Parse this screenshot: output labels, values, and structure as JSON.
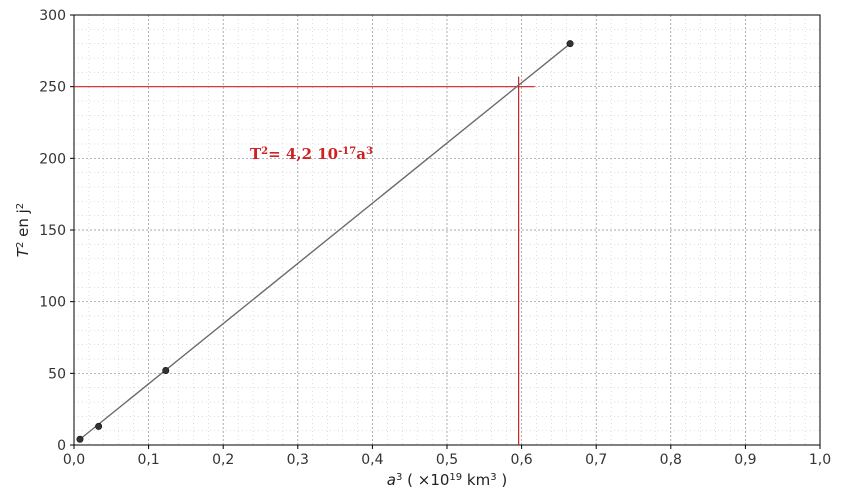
{
  "chart_data": {
    "type": "scatter",
    "xlabel_var": "a",
    "xlabel_exp": "3",
    "xlabel_mid": " ( ×10",
    "xlabel_pow": "19",
    "xlabel_unit": " km",
    "xlabel_unit_exp": "3",
    "xlabel_end": " )",
    "ylabel_var": "T",
    "ylabel_exp": "2",
    "ylabel_mid": " en j",
    "ylabel_unit_exp": "2",
    "xlim": [
      0,
      1.0
    ],
    "ylim": [
      0,
      300
    ],
    "x_ticks": [
      "0,0",
      "0,1",
      "0,2",
      "0,3",
      "0,4",
      "0,5",
      "0,6",
      "0,7",
      "0,8",
      "0,9",
      "1,0"
    ],
    "y_ticks": [
      "0",
      "50",
      "100",
      "150",
      "200",
      "250",
      "300"
    ],
    "grid": true,
    "points": [
      {
        "x": 0.008,
        "y": 4
      },
      {
        "x": 0.033,
        "y": 13
      },
      {
        "x": 0.123,
        "y": 52
      },
      {
        "x": 0.665,
        "y": 280
      }
    ],
    "fit_line": {
      "x": [
        0.008,
        0.665
      ],
      "y": [
        4,
        280
      ]
    },
    "reference": {
      "x": 0.596,
      "y": 250
    },
    "annotation": {
      "base": "T",
      "base_exp": "2",
      "mid": "=  4,2  10",
      "pow": "-17",
      "var": "a",
      "var_exp": "3"
    },
    "colors": {
      "fit_line": "#6b6b6b",
      "points": "#333333",
      "reference": "#cc2222",
      "annotation": "#cc2222",
      "grid": "#bdbdbd"
    }
  }
}
